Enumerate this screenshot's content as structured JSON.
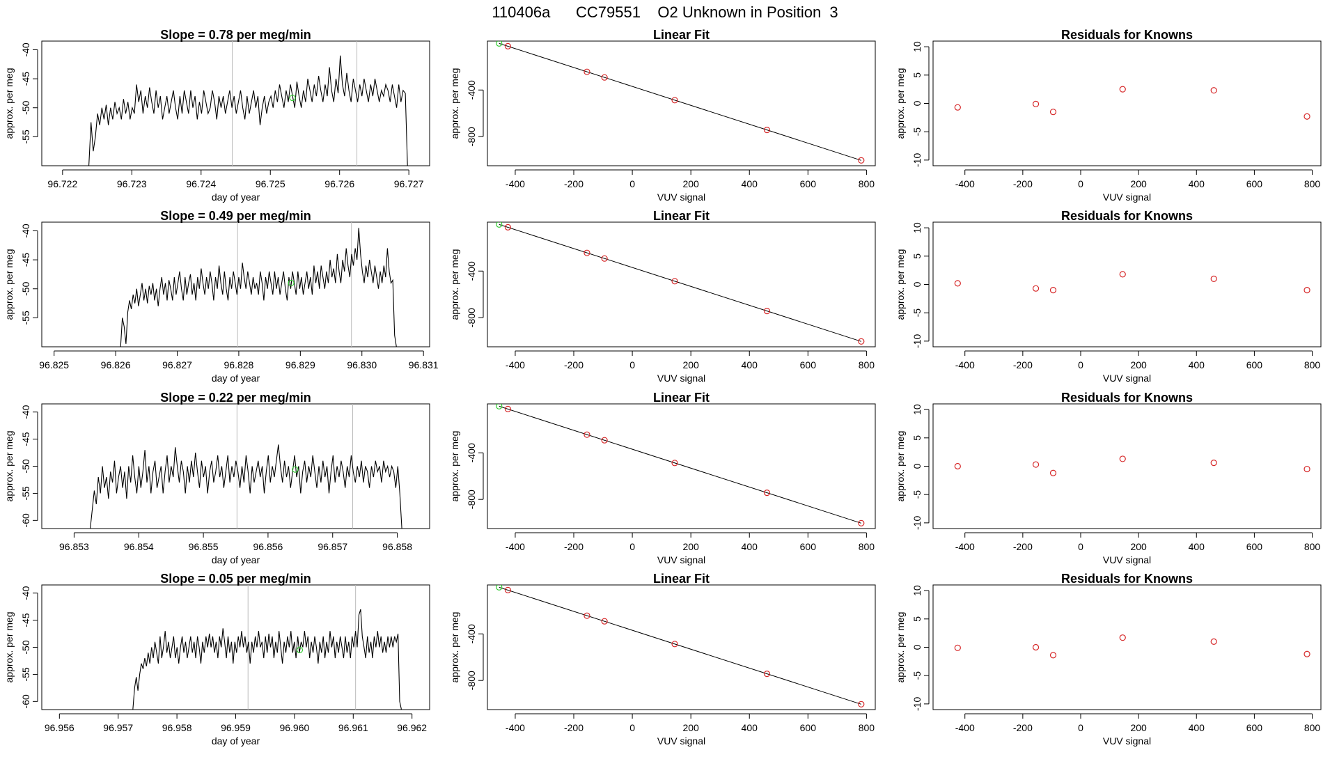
{
  "page_title": "110406a      CC79551    O2 Unknown in Position  3",
  "colors": {
    "line": "#000000",
    "known_point": "#d62728",
    "unknown_point": "#33cc33",
    "vline": "#bbbbbb"
  },
  "chart_data": [
    {
      "type": "line",
      "title": "Slope =  0.78  per meg/min",
      "xlabel": "day of year",
      "ylabel": "approx. per meg",
      "xlim": [
        96.7217,
        96.7273
      ],
      "ylim": [
        -60,
        -38.5
      ],
      "xticks": [
        "96.722",
        "96.723",
        "96.724",
        "96.725",
        "96.726",
        "96.727"
      ],
      "yticks": [
        "-40",
        "-45",
        "-50",
        "-55"
      ],
      "vlines": [
        96.72445,
        96.72625
      ],
      "unknown_point": {
        "x": 96.72532,
        "y": -48.3
      },
      "trace": {
        "x0": 96.72238,
        "x1": 96.72698,
        "start": [
          -60,
          -52.5,
          -57.5
        ],
        "end": [
          -47.5,
          -60
        ],
        "mid": [
          -55,
          -51,
          -53,
          -50,
          -52,
          -49.5,
          -53,
          -50,
          -52,
          -49,
          -51,
          -50,
          -52,
          -48.5,
          -51,
          -49,
          -52,
          -50,
          -51,
          -46,
          -49,
          -47,
          -51,
          -48,
          -50,
          -46.5,
          -49,
          -51,
          -47,
          -50,
          -48,
          -52,
          -50,
          -48,
          -51,
          -49,
          -47,
          -50,
          -52,
          -48,
          -51,
          -47,
          -49,
          -51,
          -47,
          -50,
          -48,
          -52,
          -49,
          -51,
          -47,
          -49,
          -51,
          -50,
          -47,
          -49,
          -52,
          -48,
          -50,
          -48,
          -51,
          -49,
          -47,
          -50,
          -48,
          -51,
          -49,
          -47,
          -50,
          -52,
          -48,
          -51,
          -49,
          -47,
          -50,
          -48,
          -53,
          -50,
          -48,
          -51,
          -49,
          -48,
          -50,
          -47,
          -49,
          -46,
          -48,
          -50,
          -47,
          -49,
          -46,
          -48,
          -50,
          -45.5,
          -48,
          -50,
          -47,
          -49,
          -45,
          -47,
          -49,
          -46,
          -48,
          -44.5,
          -47,
          -49,
          -46,
          -48,
          -43,
          -47,
          -49,
          -45,
          -47.5,
          -41,
          -46,
          -48,
          -44,
          -47,
          -49,
          -45,
          -47,
          -49,
          -46,
          -48,
          -45,
          -47,
          -49,
          -46,
          -48,
          -45,
          -47,
          -49,
          -47,
          -48,
          -46,
          -47,
          -49,
          -46,
          -48,
          -50,
          -46,
          -49,
          -47
        ]
      }
    },
    {
      "type": "line",
      "title": "Slope =  0.49  per meg/min",
      "xlabel": "day of year",
      "ylabel": "approx. per meg",
      "xlim": [
        96.8248,
        96.8311
      ],
      "ylim": [
        -60,
        -38.5
      ],
      "xticks": [
        "96.825",
        "96.826",
        "96.827",
        "96.828",
        "96.829",
        "96.830",
        "96.831"
      ],
      "yticks": [
        "-40",
        "-45",
        "-50",
        "-55"
      ],
      "vlines": [
        96.82798,
        96.82983
      ],
      "unknown_point": {
        "x": 96.82885,
        "y": -49.0
      },
      "trace": {
        "x0": 96.82608,
        "x1": 96.83056,
        "start": [
          -60,
          -55,
          -56.5,
          -59.5
        ],
        "end": [
          -48.5,
          -58,
          -60
        ],
        "mid": [
          -54,
          -52,
          -53.5,
          -51,
          -52.5,
          -50,
          -53,
          -51,
          -49,
          -52,
          -50,
          -52.5,
          -49.5,
          -51,
          -49,
          -52,
          -50,
          -53,
          -50,
          -48,
          -51,
          -49,
          -52,
          -48.5,
          -50,
          -52,
          -48,
          -51,
          -49,
          -47,
          -50,
          -52,
          -48,
          -51,
          -49,
          -47.5,
          -51,
          -49,
          -52,
          -48,
          -50,
          -46.5,
          -49,
          -51,
          -48,
          -50,
          -47,
          -49,
          -52,
          -48,
          -50,
          -46,
          -49,
          -51,
          -47,
          -50,
          -52,
          -48,
          -50,
          -47,
          -49,
          -51,
          -48,
          -50,
          -45.5,
          -48,
          -50,
          -47,
          -49,
          -51,
          -48,
          -50,
          -49,
          -51,
          -47,
          -49,
          -52,
          -48,
          -50,
          -47,
          -49,
          -51,
          -47,
          -50,
          -48,
          -51,
          -49,
          -47,
          -50,
          -52,
          -48,
          -50,
          -47,
          -49,
          -51,
          -47,
          -50,
          -48,
          -51,
          -49,
          -47,
          -50,
          -48,
          -51,
          -46,
          -49,
          -47,
          -50,
          -46,
          -48,
          -50,
          -47,
          -49,
          -45,
          -48,
          -46.5,
          -49,
          -44,
          -47,
          -49,
          -45,
          -47,
          -43,
          -46,
          -48,
          -44,
          -46,
          -43,
          -45,
          -39.5,
          -44,
          -47,
          -49,
          -46,
          -48,
          -45,
          -47,
          -49,
          -46,
          -48,
          -50,
          -47,
          -49,
          -46,
          -48,
          -43,
          -47,
          -49
        ]
      }
    },
    {
      "type": "line",
      "title": "Slope =  0.22  per meg/min",
      "xlabel": "day of year",
      "ylabel": "approx. per meg",
      "xlim": [
        96.8525,
        96.8585
      ],
      "ylim": [
        -61.5,
        -38.5
      ],
      "xticks": [
        "96.853",
        "96.854",
        "96.855",
        "96.856",
        "96.857",
        "96.858"
      ],
      "yticks": [
        "-40",
        "-45",
        "-50",
        "-55",
        "-60"
      ],
      "vlines": [
        96.85552,
        96.85731
      ],
      "unknown_point": {
        "x": 96.85642,
        "y": -50.6
      },
      "trace": {
        "x0": 96.85325,
        "x1": 96.85807,
        "start": [
          -61.5,
          -58,
          -54.5
        ],
        "end": [
          -55,
          -61.5
        ],
        "mid": [
          -57,
          -52,
          -55,
          -50,
          -54,
          -52,
          -56,
          -51,
          -53,
          -49,
          -55,
          -52,
          -50,
          -54,
          -51,
          -56,
          -50,
          -53,
          -48,
          -52,
          -55,
          -50,
          -54,
          -51,
          -47,
          -53,
          -50,
          -55,
          -51,
          -49,
          -54,
          -52,
          -50,
          -55,
          -51,
          -48,
          -53,
          -50,
          -52,
          -46.5,
          -50,
          -53,
          -49,
          -51,
          -55,
          -50,
          -53,
          -49,
          -52,
          -47.5,
          -51,
          -54,
          -49,
          -52,
          -50,
          -55,
          -51,
          -49,
          -53,
          -51,
          -48,
          -52,
          -50,
          -54,
          -51,
          -48,
          -53,
          -50,
          -52,
          -49,
          -51,
          -54,
          -50,
          -53,
          -48,
          -51,
          -55,
          -50,
          -53,
          -51,
          -49,
          -52,
          -50,
          -55,
          -51,
          -48,
          -53,
          -50,
          -52,
          -49,
          -46,
          -50,
          -53,
          -49,
          -52,
          -50,
          -54,
          -51,
          -48,
          -52,
          -50,
          -55,
          -51,
          -49,
          -53,
          -50,
          -52,
          -48,
          -51,
          -54,
          -50,
          -53,
          -49,
          -52,
          -50,
          -55,
          -51,
          -48,
          -53,
          -50,
          -52,
          -49,
          -51,
          -54,
          -50,
          -52,
          -48,
          -51,
          -53,
          -50,
          -52,
          -49,
          -53,
          -50,
          -51,
          -54,
          -50,
          -52,
          -49,
          -51,
          -50,
          -53,
          -49,
          -51,
          -50,
          -52,
          -50,
          -51,
          -54,
          -50
        ]
      }
    },
    {
      "type": "line",
      "title": "Slope =  0.05  per meg/min",
      "xlabel": "day of year",
      "ylabel": "approx. per meg",
      "xlim": [
        96.9557,
        96.9623
      ],
      "ylim": [
        -61.5,
        -38.5
      ],
      "xticks": [
        "96.956",
        "96.957",
        "96.958",
        "96.959",
        "96.960",
        "96.961",
        "96.962"
      ],
      "yticks": [
        "-40",
        "-45",
        "-50",
        "-55",
        "-60"
      ],
      "vlines": [
        96.95921,
        96.96104
      ],
      "unknown_point": {
        "x": 96.96009,
        "y": -50.5
      },
      "trace": {
        "x0": 96.95725,
        "x1": 96.96182,
        "start": [
          -61.5,
          -57.5,
          -55.5,
          -58
        ],
        "end": [
          -47.5,
          -60,
          -61.5
        ],
        "mid": [
          -55,
          -53,
          -54,
          -52,
          -53.5,
          -51,
          -53,
          -50,
          -52,
          -49,
          -51,
          -53,
          -48,
          -52,
          -50,
          -47,
          -51,
          -49,
          -52,
          -50,
          -48,
          -52,
          -50,
          -53,
          -50,
          -48,
          -51,
          -49,
          -52,
          -50,
          -48,
          -51,
          -49,
          -52,
          -48,
          -50,
          -53,
          -49,
          -51,
          -48,
          -50,
          -47.5,
          -50,
          -48,
          -51,
          -49,
          -52,
          -48,
          -50,
          -46.5,
          -49,
          -52,
          -48,
          -51,
          -49,
          -53,
          -49,
          -51,
          -48,
          -50,
          -47,
          -50,
          -48,
          -51,
          -49,
          -53,
          -49,
          -51,
          -48,
          -50,
          -47,
          -50,
          -49,
          -52,
          -48,
          -51,
          -47.5,
          -50,
          -48,
          -52,
          -49,
          -51,
          -47,
          -50,
          -53,
          -49,
          -51,
          -48,
          -50,
          -47,
          -51,
          -49,
          -52,
          -48,
          -51,
          -49,
          -50,
          -47,
          -50,
          -48,
          -52,
          -49,
          -51,
          -48,
          -50,
          -53,
          -49,
          -51,
          -48,
          -52,
          -49,
          -51,
          -47,
          -50,
          -48,
          -52,
          -49,
          -51,
          -48,
          -50,
          -52,
          -48,
          -51,
          -49,
          -52,
          -48,
          -50,
          -47,
          -50,
          -44,
          -43,
          -48,
          -50,
          -52,
          -48,
          -51,
          -49,
          -52,
          -48,
          -50,
          -47,
          -50,
          -48,
          -51,
          -49,
          -51,
          -48,
          -50,
          -48,
          -50,
          -48,
          -49
        ]
      }
    },
    {
      "type": "scatter",
      "title": "Linear Fit",
      "xlabel": "VUV signal",
      "ylabel": "approx. per meg",
      "xlim": [
        -495,
        830
      ],
      "ylim": [
        -1050,
        20
      ],
      "xticks": [
        "-400",
        "-200",
        "0",
        "200",
        "400",
        "600",
        "800"
      ],
      "yticks": [
        "-400",
        "-800"
      ],
      "fit_line": {
        "x": [
          -455,
          782
        ],
        "y": [
          0,
          -1004
        ]
      },
      "known_points": {
        "x": [
          -425,
          -155,
          -95,
          145,
          460,
          782
        ],
        "y": [
          -24,
          -244,
          -292,
          -487,
          -743,
          -1004
        ]
      },
      "unknown_point": {
        "x": -455,
        "y": 0
      }
    },
    {
      "type": "scatter",
      "title": "Linear Fit",
      "xlabel": "VUV signal",
      "ylabel": "approx. per meg",
      "xlim": [
        -495,
        830
      ],
      "ylim": [
        -1050,
        20
      ],
      "xticks": [
        "-400",
        "-200",
        "0",
        "200",
        "400",
        "600",
        "800"
      ],
      "yticks": [
        "-400",
        "-800"
      ],
      "fit_line": {
        "x": [
          -455,
          782
        ],
        "y": [
          0,
          -1004
        ]
      },
      "known_points": {
        "x": [
          -425,
          -155,
          -95,
          145,
          460,
          782
        ],
        "y": [
          -24,
          -244,
          -292,
          -487,
          -743,
          -1004
        ]
      },
      "unknown_point": {
        "x": -455,
        "y": 0
      }
    },
    {
      "type": "scatter",
      "title": "Linear Fit",
      "xlabel": "VUV signal",
      "ylabel": "approx. per meg",
      "xlim": [
        -495,
        830
      ],
      "ylim": [
        -1050,
        20
      ],
      "xticks": [
        "-400",
        "-200",
        "0",
        "200",
        "400",
        "600",
        "800"
      ],
      "yticks": [
        "-400",
        "-800"
      ],
      "fit_line": {
        "x": [
          -455,
          782
        ],
        "y": [
          0,
          -1004
        ]
      },
      "known_points": {
        "x": [
          -425,
          -155,
          -95,
          145,
          460,
          782
        ],
        "y": [
          -24,
          -244,
          -292,
          -487,
          -743,
          -1004
        ]
      },
      "unknown_point": {
        "x": -455,
        "y": 0
      }
    },
    {
      "type": "scatter",
      "title": "Linear Fit",
      "xlabel": "VUV signal",
      "ylabel": "approx. per meg",
      "xlim": [
        -495,
        830
      ],
      "ylim": [
        -1050,
        20
      ],
      "xticks": [
        "-400",
        "-200",
        "0",
        "200",
        "400",
        "600",
        "800"
      ],
      "yticks": [
        "-400",
        "-800"
      ],
      "fit_line": {
        "x": [
          -455,
          782
        ],
        "y": [
          0,
          -1004
        ]
      },
      "known_points": {
        "x": [
          -425,
          -155,
          -95,
          145,
          460,
          782
        ],
        "y": [
          -24,
          -244,
          -292,
          -487,
          -743,
          -1004
        ]
      },
      "unknown_point": {
        "x": -455,
        "y": 0
      }
    },
    {
      "type": "scatter",
      "title": "Residuals for Knowns",
      "xlabel": "VUV signal",
      "ylabel": "approx. per meg",
      "xlim": [
        -510,
        830
      ],
      "ylim": [
        -11,
        11
      ],
      "xticks": [
        "-400",
        "-200",
        "0",
        "200",
        "400",
        "600",
        "800"
      ],
      "yticks": [
        "10",
        "5",
        "0",
        "-5",
        "-10"
      ],
      "known_points": {
        "x": [
          -425,
          -155,
          -95,
          145,
          460,
          782
        ],
        "y": [
          -0.7,
          -0.1,
          -1.5,
          2.5,
          2.3,
          -2.3
        ]
      }
    },
    {
      "type": "scatter",
      "title": "Residuals for Knowns",
      "xlabel": "VUV signal",
      "ylabel": "approx. per meg",
      "xlim": [
        -510,
        830
      ],
      "ylim": [
        -11,
        11
      ],
      "xticks": [
        "-400",
        "-200",
        "0",
        "200",
        "400",
        "600",
        "800"
      ],
      "yticks": [
        "10",
        "5",
        "0",
        "-5",
        "-10"
      ],
      "known_points": {
        "x": [
          -425,
          -155,
          -95,
          145,
          460,
          782
        ],
        "y": [
          0.2,
          -0.7,
          -1.0,
          1.8,
          1.0,
          -1.0
        ]
      }
    },
    {
      "type": "scatter",
      "title": "Residuals for Knowns",
      "xlabel": "VUV signal",
      "ylabel": "approx. per meg",
      "xlim": [
        -510,
        830
      ],
      "ylim": [
        -11,
        11
      ],
      "xticks": [
        "-400",
        "-200",
        "0",
        "200",
        "400",
        "600",
        "800"
      ],
      "yticks": [
        "10",
        "5",
        "0",
        "-5",
        "-10"
      ],
      "known_points": {
        "x": [
          -425,
          -155,
          -95,
          145,
          460,
          782
        ],
        "y": [
          0.0,
          0.3,
          -1.2,
          1.3,
          0.6,
          -0.5
        ]
      }
    },
    {
      "type": "scatter",
      "title": "Residuals for Knowns",
      "xlabel": "VUV signal",
      "ylabel": "approx. per meg",
      "xlim": [
        -510,
        830
      ],
      "ylim": [
        -11,
        11
      ],
      "xticks": [
        "-400",
        "-200",
        "0",
        "200",
        "400",
        "600",
        "800"
      ],
      "yticks": [
        "10",
        "5",
        "0",
        "-5",
        "-10"
      ],
      "known_points": {
        "x": [
          -425,
          -155,
          -95,
          145,
          460,
          782
        ],
        "y": [
          -0.1,
          0.0,
          -1.4,
          1.7,
          1.0,
          -1.2
        ]
      }
    }
  ]
}
